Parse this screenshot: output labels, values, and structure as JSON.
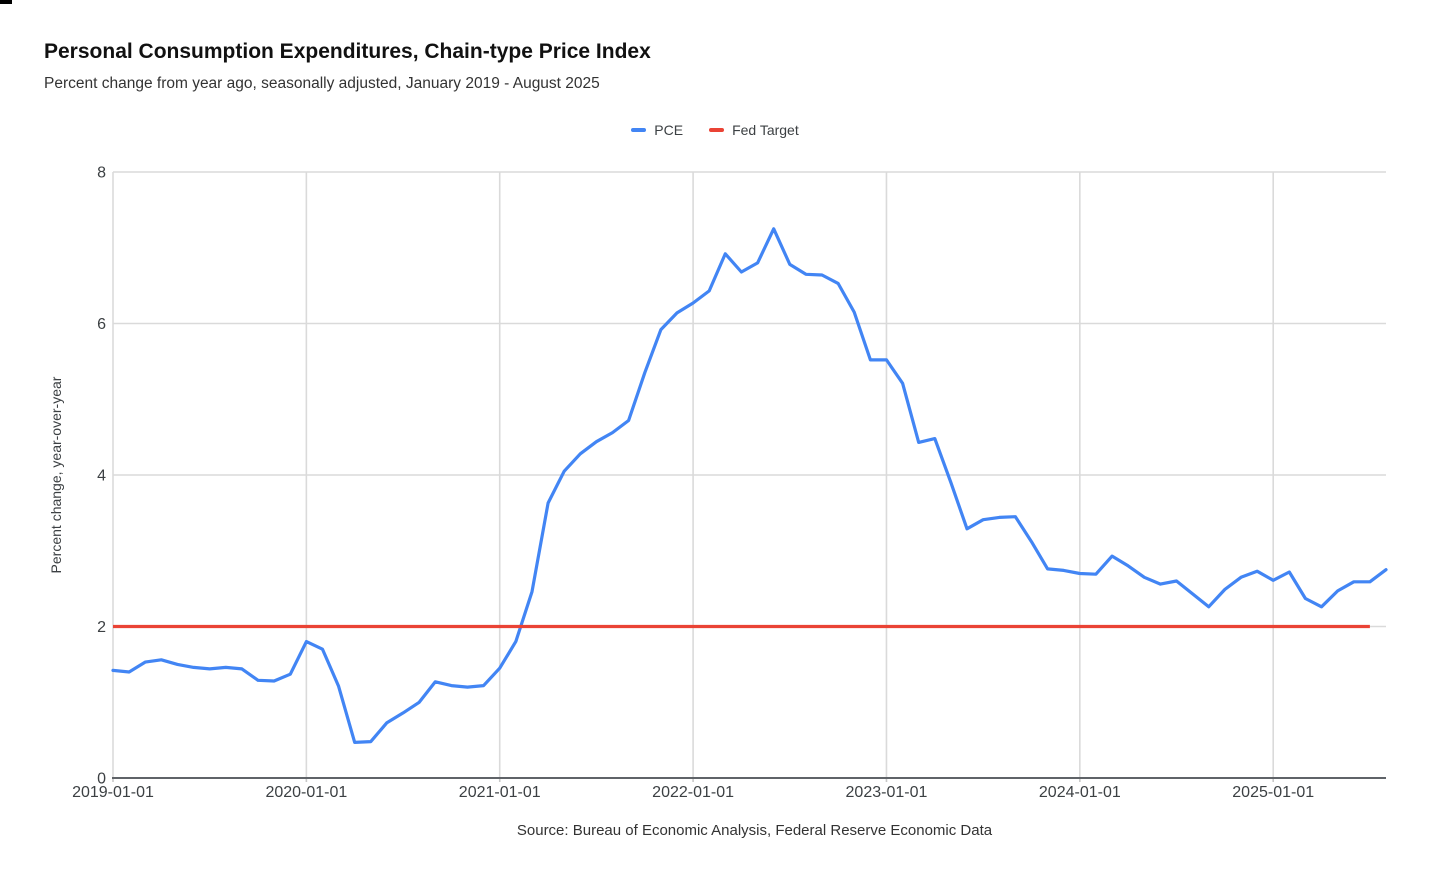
{
  "chart_data": {
    "type": "line",
    "title": "Personal Consumption Expenditures, Chain-type Price Index",
    "subtitle": "Percent change from year ago, seasonally adjusted, January 2019 - August 2025",
    "ylabel": "Percent change, year-over-year",
    "source": "Source: Bureau of Economic Analysis, Federal Reserve Economic Data",
    "x_start": "2019-01",
    "x_end": "2025-08",
    "x_freq": "monthly",
    "n_points": 80,
    "xtick_labels": [
      "2019-01-01",
      "2020-01-01",
      "2021-01-01",
      "2022-01-01",
      "2023-01-01",
      "2024-01-01",
      "2025-01-01"
    ],
    "xtick_month_index": [
      0,
      12,
      24,
      36,
      48,
      60,
      72
    ],
    "ytick_labels": [
      "0",
      "2",
      "4",
      "6",
      "8"
    ],
    "ytick_values": [
      0,
      2,
      4,
      6,
      8
    ],
    "ylim": [
      0,
      8
    ],
    "grid": true,
    "legend_position": "top-center",
    "series": [
      {
        "name": "PCE",
        "color": "#4285F4",
        "line_width": 3.2,
        "values": [
          1.42,
          1.4,
          1.53,
          1.56,
          1.5,
          1.46,
          1.44,
          1.46,
          1.44,
          1.29,
          1.28,
          1.37,
          1.8,
          1.7,
          1.21,
          0.47,
          0.48,
          0.73,
          0.86,
          1.0,
          1.27,
          1.22,
          1.2,
          1.22,
          1.45,
          1.8,
          2.46,
          3.63,
          4.05,
          4.28,
          4.44,
          4.56,
          4.72,
          5.35,
          5.92,
          6.14,
          6.27,
          6.43,
          6.92,
          6.68,
          6.8,
          7.25,
          6.78,
          6.65,
          6.64,
          6.53,
          6.15,
          5.52,
          5.52,
          5.21,
          4.43,
          4.48,
          3.9,
          3.29,
          3.41,
          3.44,
          3.45,
          3.12,
          2.76,
          2.74,
          2.7,
          2.69,
          2.93,
          2.8,
          2.65,
          2.56,
          2.6,
          2.43,
          2.26,
          2.49,
          2.65,
          2.73,
          2.61,
          2.72,
          2.37,
          2.26,
          2.47,
          2.59,
          2.59,
          2.75
        ]
      },
      {
        "name": "Fed Target",
        "color": "#EA4335",
        "line_width": 3.2,
        "constant_value": 2.0,
        "start_month_index": 0,
        "end_month_index": 78
      }
    ],
    "grid_color": "#dadada",
    "axis_line_color": "#5f6368",
    "tick_label_color": "#3c4043"
  }
}
